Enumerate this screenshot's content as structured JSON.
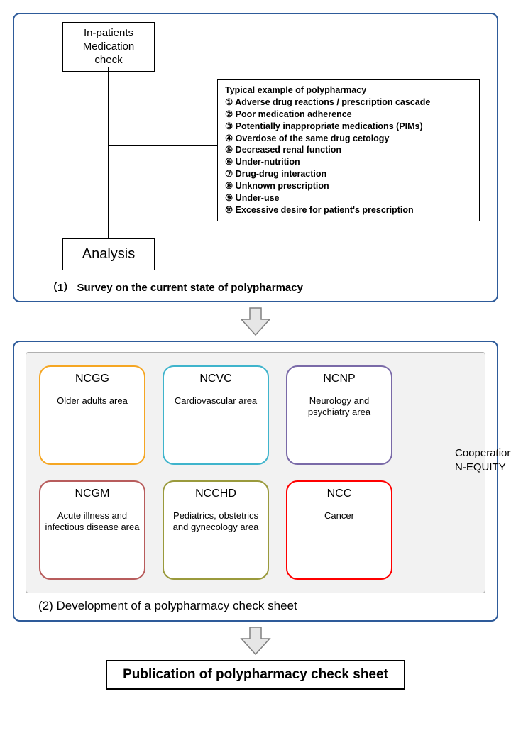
{
  "diagram": {
    "panel_border_color": "#2e5b9a",
    "panel1": {
      "inpatients_box": "In-patients Medication check",
      "analysis_box": "Analysis",
      "example_title": "Typical example of polypharmacy",
      "examples": [
        "Adverse drug reactions / prescription cascade",
        "Poor medication adherence",
        "Potentially inappropriate medications (PIMs)",
        "Overdose of the same drug cetology",
        "Decreased renal function",
        "Under-nutrition",
        "Drug-drug interaction",
        "Unknown prescription",
        "Under-use",
        "Excessive desire for patient's prescription"
      ],
      "caption": "（1）  Survey on the current state of polypharmacy"
    },
    "panel2": {
      "inner_bg": "#f2f2f2",
      "inner_border": "#b0b0b0",
      "orgs": [
        {
          "abbr": "NCGG",
          "area": "Older adults area",
          "color": "#f5a623"
        },
        {
          "abbr": "NCVC",
          "area": "Cardiovascular area",
          "color": "#3fb4cc"
        },
        {
          "abbr": "NCNP",
          "area": "Neurology and psychiatry area",
          "color": "#7a6aa8"
        },
        {
          "abbr": "NCGM",
          "area": "Acute illness and infectious disease area",
          "color": "#b85c5c"
        },
        {
          "abbr": "NCCHD",
          "area": "Pediatrics, obstetrics and gynecology area",
          "color": "#9a9a3c"
        },
        {
          "abbr": "NCC",
          "area": "Cancer",
          "color": "#ff0000"
        }
      ],
      "cooperation": "Cooperation of\nN-EQUITY",
      "caption": "(2)   Development of a polypharmacy check sheet"
    },
    "arrow": {
      "fill": "#e6e6e6",
      "stroke": "#808080"
    },
    "final": "Publication of polypharmacy check sheet"
  }
}
